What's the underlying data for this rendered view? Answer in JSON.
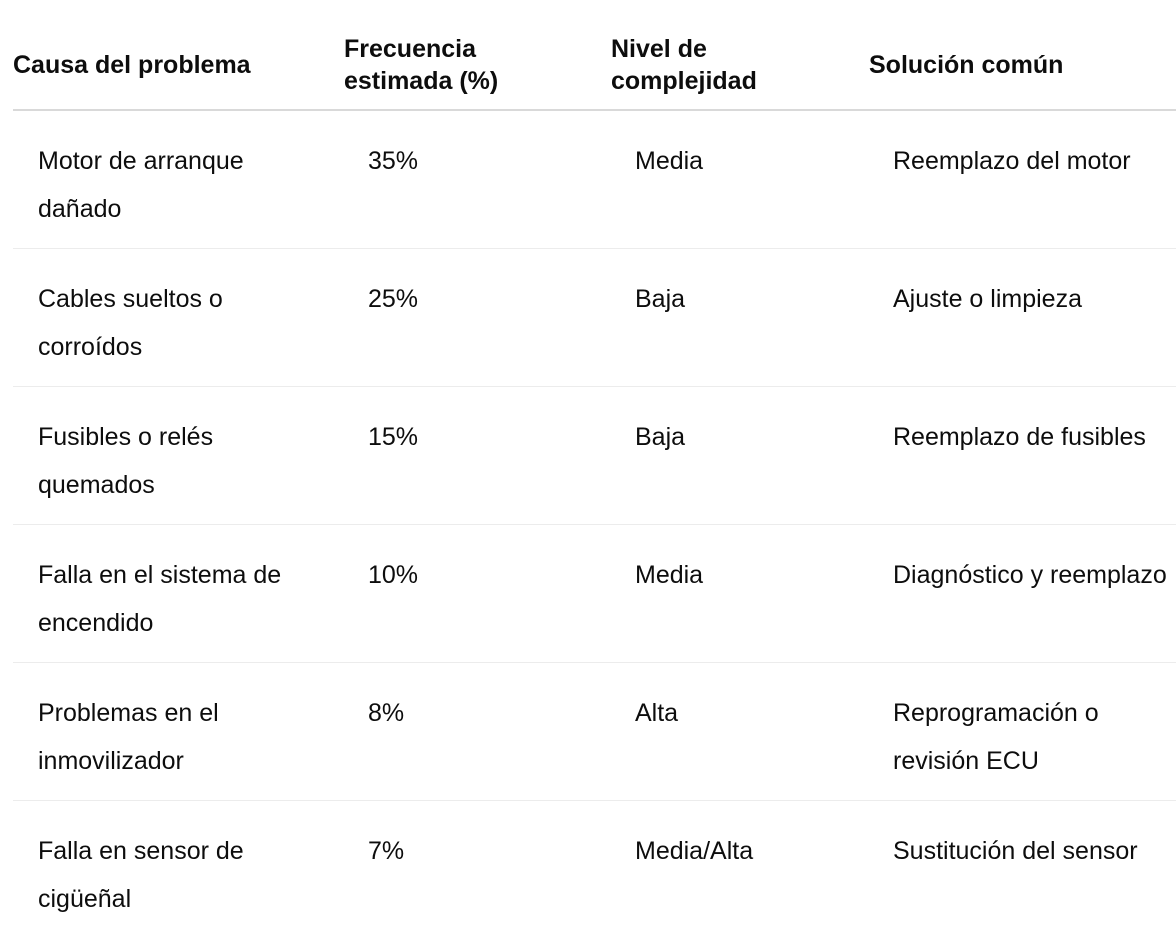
{
  "table": {
    "headers": {
      "cause": "Causa del problema",
      "frequency": "Frecuencia\nestimada (%)",
      "complexity": "Nivel de\ncomplejidad",
      "solution": "Solución común"
    },
    "rows": [
      {
        "cause": "Motor de arranque dañado",
        "frequency": "35%",
        "complexity": "Media",
        "solution": "Reemplazo del motor"
      },
      {
        "cause": "Cables sueltos o corroídos",
        "frequency": "25%",
        "complexity": "Baja",
        "solution": "Ajuste o limpieza"
      },
      {
        "cause": "Fusibles o relés quemados",
        "frequency": "15%",
        "complexity": "Baja",
        "solution": "Reemplazo de fusibles"
      },
      {
        "cause": "Falla en el sistema de encendido",
        "frequency": "10%",
        "complexity": "Media",
        "solution": "Diagnóstico y reemplazo"
      },
      {
        "cause": "Problemas en el inmovilizador",
        "frequency": "8%",
        "complexity": "Alta",
        "solution": "Reprogramación o revisión ECU"
      },
      {
        "cause": "Falla en sensor de cigüeñal",
        "frequency": "7%",
        "complexity": "Media/Alta",
        "solution": "Sustitución del sensor"
      }
    ]
  }
}
